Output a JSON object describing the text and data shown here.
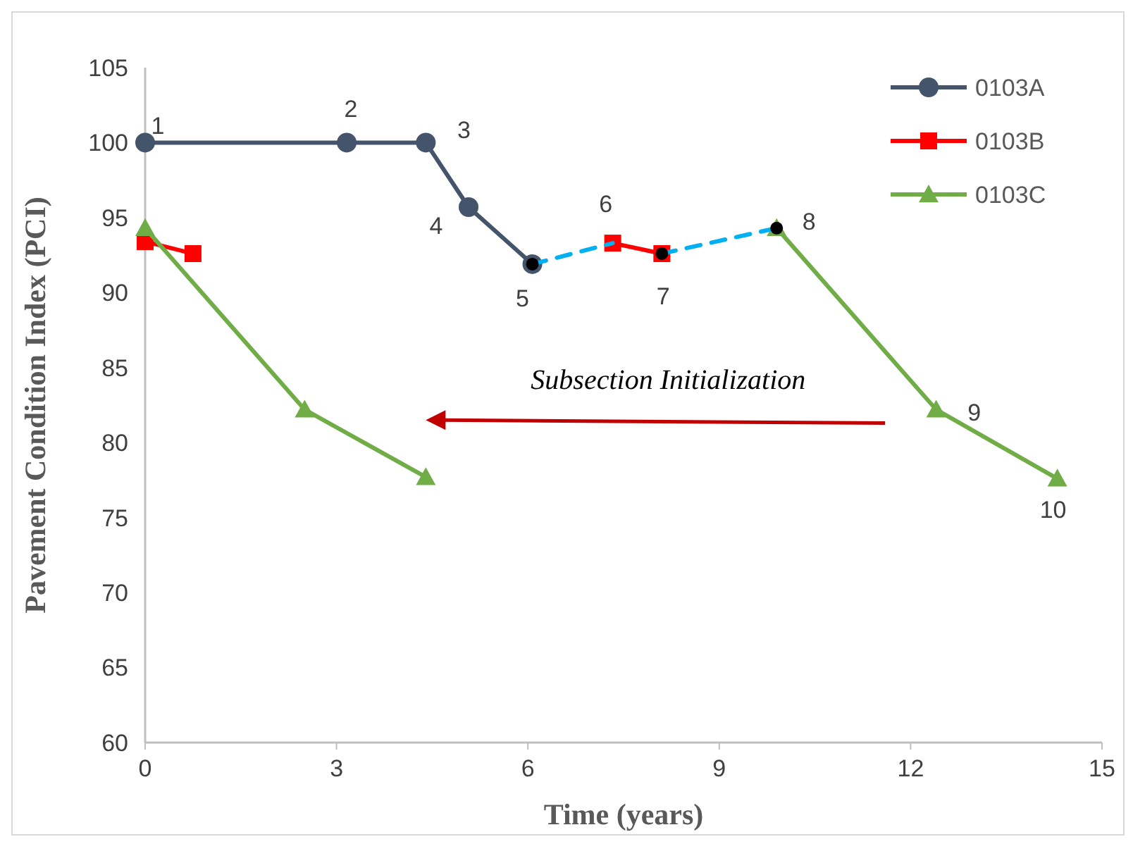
{
  "chart_data": {
    "type": "line",
    "xlabel": "Time (years)",
    "ylabel": "Pavement Condition Index (PCI)",
    "xlim": [
      0,
      15
    ],
    "xticks": [
      0,
      3,
      6,
      9,
      12,
      15
    ],
    "ylim": [
      60,
      105
    ],
    "yticks": [
      60,
      65,
      70,
      75,
      80,
      85,
      90,
      95,
      100,
      105
    ],
    "grid": false,
    "legend": "top right",
    "series": [
      {
        "name": "0103A",
        "color": "#44546a",
        "marker": "circle",
        "line_style": "solid",
        "x": [
          0,
          3.16,
          4.4,
          5.07,
          6.07
        ],
        "values": [
          100,
          100,
          100,
          95.7,
          91.9
        ]
      },
      {
        "name": "0103B",
        "color": "#ff0000",
        "marker": "square",
        "line_style": "solid",
        "x": [
          0,
          0.75,
          4,
          7.33,
          8.1
        ],
        "values": [
          93.4,
          92.6,
          null,
          93.3,
          92.6
        ]
      },
      {
        "name": "0103C",
        "color": "#70ad47",
        "marker": "triangle",
        "line_style": "solid",
        "x": [
          0,
          2.5,
          4.4,
          7,
          9.9,
          12.4,
          14.3
        ],
        "values": [
          94.3,
          82.2,
          77.7,
          null,
          94.3,
          82.2,
          77.6
        ]
      },
      {
        "type": "line",
        "color": "#00b0f0",
        "marker": "none",
        "line_style": "dashed",
        "x": [
          6.07,
          7.33,
          7.7,
          8.1,
          9.9
        ],
        "values": [
          91.9,
          93.3,
          null,
          92.6,
          94.3
        ]
      },
      {
        "type": "scatter",
        "color": "#000000",
        "marker": "circle",
        "x": [
          6.07,
          8.1,
          9.9
        ],
        "values": [
          91.9,
          92.6,
          94.3
        ]
      }
    ],
    "annotations": [
      {
        "text": "1",
        "x": 0,
        "y": 100
      },
      {
        "text": "2",
        "x": 3.16,
        "y": 100
      },
      {
        "text": "3",
        "x": 4.4,
        "y": 100
      },
      {
        "text": "4",
        "x": 5.07,
        "y": 95.7
      },
      {
        "text": "5",
        "x": 6.07,
        "y": 91.9
      },
      {
        "text": "6",
        "x": 7.33,
        "y": 93.3
      },
      {
        "text": "7",
        "x": 8.1,
        "y": 92.6
      },
      {
        "text": "8",
        "x": 9.9,
        "y": 94.3
      },
      {
        "text": "9",
        "x": 12.4,
        "y": 82.2
      },
      {
        "text": "10",
        "x": 14.3,
        "y": 77.6
      },
      "Subsection Initialization"
    ]
  }
}
